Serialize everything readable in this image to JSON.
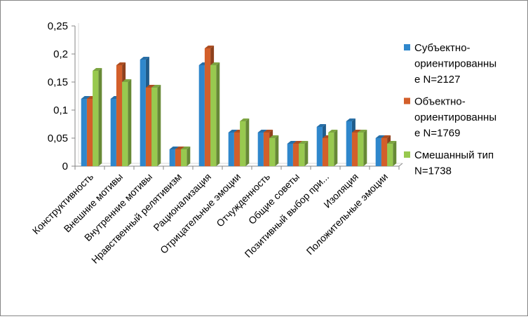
{
  "chart_data": {
    "type": "bar",
    "title": "",
    "xlabel": "",
    "ylabel": "",
    "ylim": [
      0,
      0.25
    ],
    "yticks": [
      "0",
      "0,05",
      "0,1",
      "0,15",
      "0,2",
      "0,25"
    ],
    "grid": false,
    "legend_position": "right",
    "categories": [
      "Конструктивность",
      "Внешние мотивы",
      "Внутренние мотивы",
      "Нравственный релятивизм",
      "Рационализация",
      "Отрицательные эмоции",
      "Отчужденность",
      "Общие советы",
      "Позитивный выбор при...",
      "Изоляция",
      "Положительные эмоции"
    ],
    "series": [
      {
        "name": "Субъектно-ориентированные N=2127",
        "legend_lines": [
          "Субъектно-",
          "ориентированны",
          "е N=2127"
        ],
        "color": "#2f87cc",
        "values": [
          0.12,
          0.12,
          0.19,
          0.03,
          0.18,
          0.06,
          0.06,
          0.04,
          0.07,
          0.08,
          0.05
        ]
      },
      {
        "name": "Объектно-ориентированные N=1769",
        "legend_lines": [
          "Объектно-",
          "ориентированны",
          "е N=1769"
        ],
        "color": "#d35f2a",
        "values": [
          0.12,
          0.18,
          0.14,
          0.03,
          0.21,
          0.06,
          0.06,
          0.04,
          0.05,
          0.06,
          0.05
        ]
      },
      {
        "name": "Смешанный тип N=1738",
        "legend_lines": [
          "Смешанный тип",
          "N=1738"
        ],
        "color": "#98c94f",
        "values": [
          0.17,
          0.15,
          0.14,
          0.03,
          0.18,
          0.08,
          0.05,
          0.04,
          0.06,
          0.06,
          0.04
        ]
      }
    ]
  }
}
